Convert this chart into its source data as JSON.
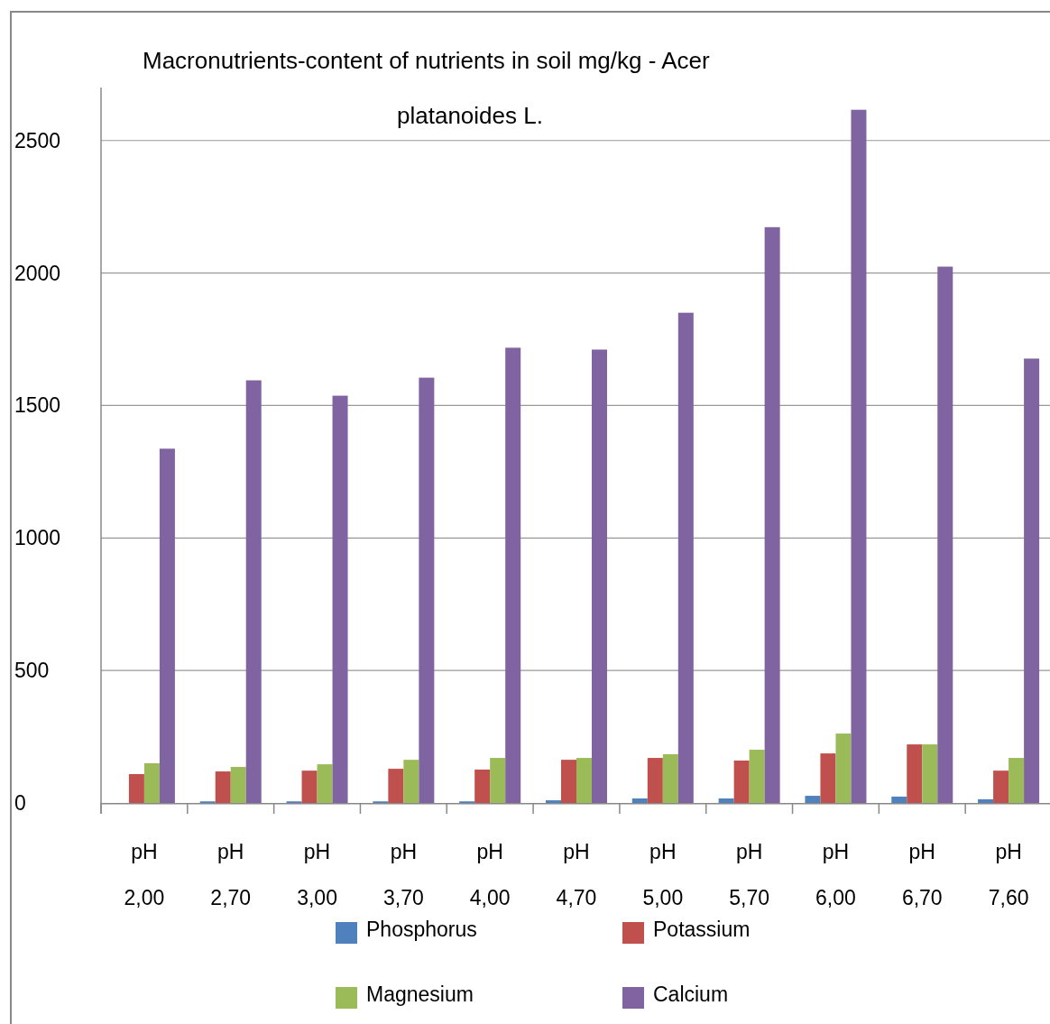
{
  "chart_data": {
    "type": "bar",
    "title": "Macronutrients-content of nutrients in soil mg/kg  - Acer platanoides L.",
    "categories": [
      "pH 2,00",
      "pH 2,70",
      "pH 3,00",
      "pH 3,70",
      "pH 4,00",
      "pH 4,70",
      "pH 5,00",
      "pH 5,70",
      "pH 6,00",
      "pH 6,70",
      "pH 7,60"
    ],
    "series": [
      {
        "name": "Phosphorus",
        "color": "#4f81bd",
        "values": [
          null,
          6,
          6,
          6,
          6,
          10,
          17,
          17,
          27,
          24,
          14
        ]
      },
      {
        "name": "Potassium",
        "color": "#c0504d",
        "values": [
          109,
          119,
          122,
          129,
          126,
          163,
          170,
          160,
          187,
          221,
          122
        ]
      },
      {
        "name": "Magnesium",
        "color": "#9bbb59",
        "values": [
          150,
          136,
          146,
          163,
          170,
          170,
          184,
          201,
          262,
          221,
          170
        ]
      },
      {
        "name": "Calcium",
        "color": "#8064a2",
        "values": [
          1337,
          1595,
          1537,
          1605,
          1718,
          1711,
          1850,
          2173,
          2616,
          2024,
          1677
        ]
      }
    ],
    "ylim": [
      0,
      2700
    ],
    "yticks": [
      0,
      500,
      1000,
      1500,
      2000,
      2500
    ],
    "grid": "y",
    "legend": "bottom"
  }
}
